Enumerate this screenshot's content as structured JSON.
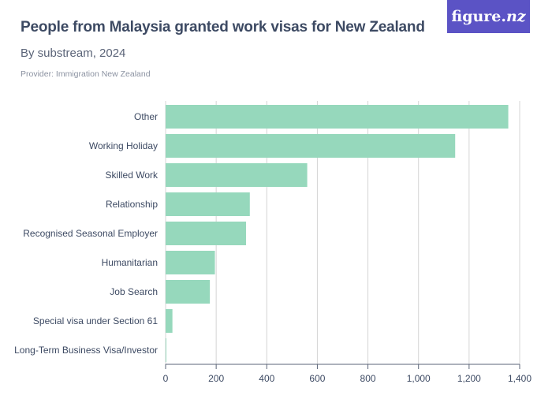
{
  "header": {
    "title": "People from Malaysia granted work visas for New Zealand",
    "subtitle": "By substream, 2024",
    "provider": "Provider: Immigration New Zealand",
    "logo": "figure.nz"
  },
  "colors": {
    "bar": "#96d8bc",
    "grid": "#d4d4d4",
    "axis": "#5b6478",
    "logo_bg": "#5b53c5"
  },
  "chart_data": {
    "type": "bar",
    "orientation": "horizontal",
    "title": "People from Malaysia granted work visas for New Zealand",
    "subtitle": "By substream, 2024",
    "categories": [
      "Other",
      "Working Holiday",
      "Skilled Work",
      "Relationship",
      "Recognised Seasonal Employer",
      "Humanitarian",
      "Job Search",
      "Special visa under Section 61",
      "Long-Term Business Visa/Investor"
    ],
    "values": [
      1355,
      1145,
      560,
      333,
      318,
      195,
      175,
      27,
      3
    ],
    "xlim": [
      0,
      1400
    ],
    "xticks": [
      0,
      200,
      400,
      600,
      800,
      1000,
      1200,
      1400
    ],
    "xtick_labels": [
      "0",
      "200",
      "400",
      "600",
      "800",
      "1,000",
      "1,200",
      "1,400"
    ],
    "grid": true
  }
}
